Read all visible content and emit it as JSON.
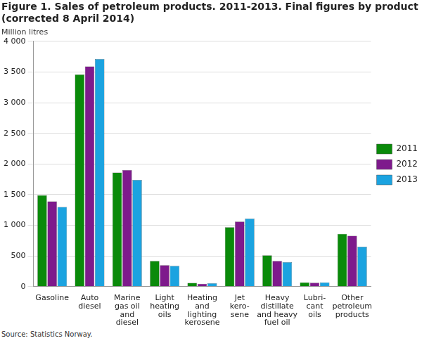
{
  "chart_data": {
    "type": "bar",
    "title": [
      "Figure 1. Sales of petroleum products. 2011-2013. Final figures by product",
      "(corrected 8 April 2014)"
    ],
    "subtitle": "Million litres",
    "source": "Source: Statistics Norway.",
    "categories": [
      [
        "Gasoline"
      ],
      [
        "Auto",
        "diesel"
      ],
      [
        "Marine",
        "gas oil",
        "and",
        "diesel"
      ],
      [
        "Light",
        "heating",
        "oils"
      ],
      [
        "Heating",
        "and",
        "lighting",
        "kerosene"
      ],
      [
        "Jet",
        "kero-",
        "sene"
      ],
      [
        "Heavy",
        "distillate",
        "and heavy",
        "fuel oil"
      ],
      [
        "Lubri-",
        "cant",
        "oils"
      ],
      [
        "Other",
        "petroleum",
        "products"
      ]
    ],
    "series": [
      {
        "name": "2011",
        "color": "#0a8a0a",
        "values": [
          1490,
          3460,
          1860,
          420,
          60,
          970,
          510,
          70,
          860
        ]
      },
      {
        "name": "2012",
        "color": "#7e1a8c",
        "values": [
          1390,
          3590,
          1900,
          350,
          45,
          1060,
          420,
          65,
          830
        ]
      },
      {
        "name": "2013",
        "color": "#1ba3e0",
        "values": [
          1300,
          3710,
          1740,
          340,
          55,
          1110,
          400,
          70,
          650
        ]
      }
    ],
    "ylim": [
      0,
      4000
    ],
    "yticks": [
      0,
      500,
      {
        "value": 1000,
        "label": "1 000"
      },
      {
        "value": 1500,
        "label": "1 500"
      },
      {
        "value": 2000,
        "label": "2 000"
      },
      {
        "value": 2500,
        "label": "2 500"
      },
      {
        "value": 3000,
        "label": "3 000"
      },
      {
        "value": 3500,
        "label": "3 500"
      },
      {
        "value": 4000,
        "label": "4 000"
      }
    ],
    "grid": true,
    "legend": "right"
  }
}
